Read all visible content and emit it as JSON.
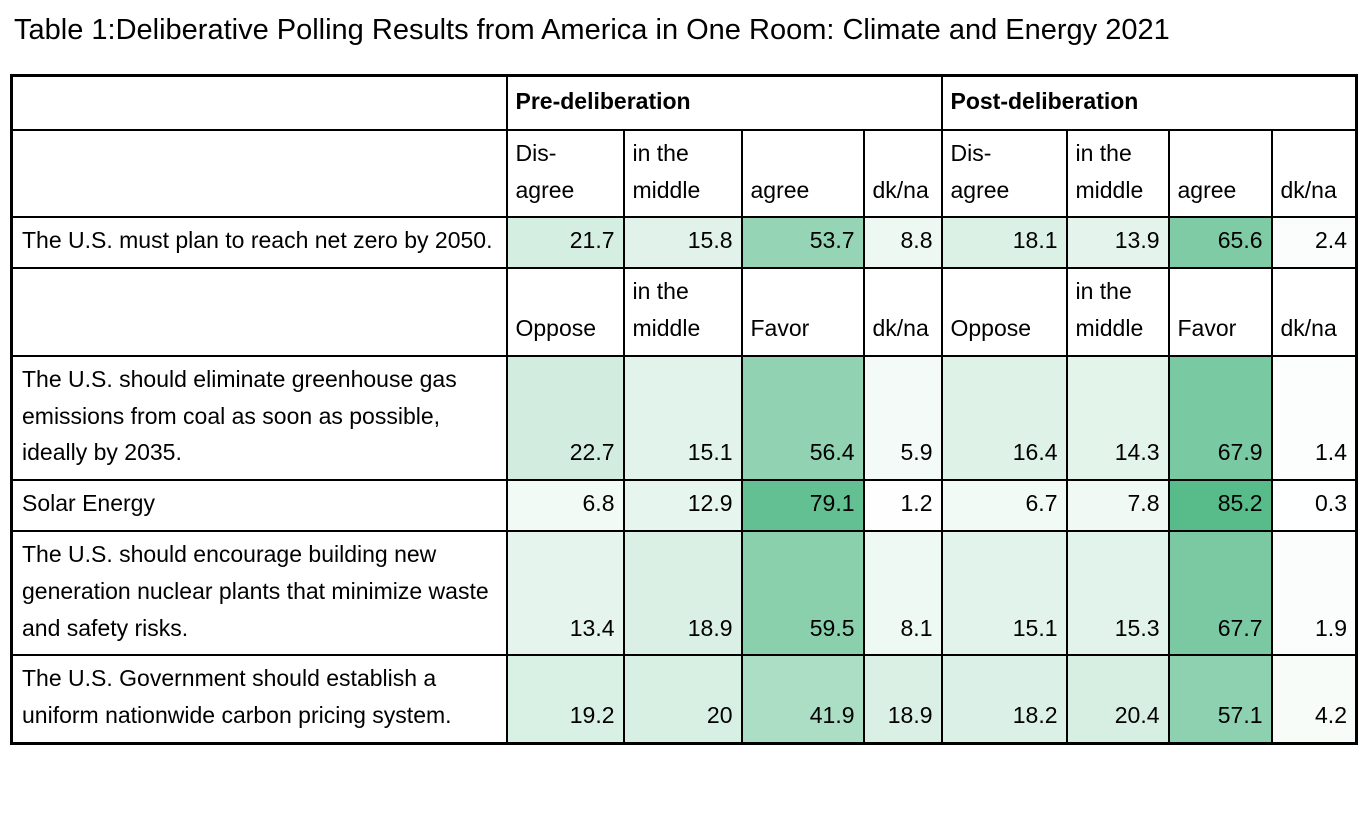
{
  "title": "Table 1:Deliberative Polling Results from America in One Room: Climate and Energy 2021",
  "chart_data": {
    "type": "table",
    "title": "Table 1:Deliberative Polling Results from America in One Room: Climate and Energy 2021",
    "group_headers": [
      "Pre-deliberation",
      "Post-deliberation"
    ],
    "heatmap_scale": {
      "min_value": 0,
      "max_value": 85.2,
      "min_color": "#ffffff",
      "max_color": "#57bb8a",
      "note": "cell background shades from white (low) to green (high percentage)"
    },
    "sections": [
      {
        "column_headers": [
          "Dis-\nagree",
          "in the\nmiddle",
          "agree",
          "dk/na"
        ],
        "rows": [
          {
            "label": "The U.S. must plan to reach net zero by 2050.",
            "pre": [
              21.7,
              15.8,
              53.7,
              8.8
            ],
            "post": [
              18.1,
              13.9,
              65.6,
              2.4
            ]
          }
        ]
      },
      {
        "column_headers": [
          "Oppose",
          "in the\nmiddle",
          "Favor",
          "dk/na"
        ],
        "rows": [
          {
            "label": "The U.S. should eliminate greenhouse gas emissions from coal as soon as possible, ideally by 2035.",
            "pre": [
              22.7,
              15.1,
              56.4,
              5.9
            ],
            "post": [
              16.4,
              14.3,
              67.9,
              1.4
            ]
          },
          {
            "label": "Solar Energy",
            "pre": [
              6.8,
              12.9,
              79.1,
              1.2
            ],
            "post": [
              6.7,
              7.8,
              85.2,
              0.3
            ]
          },
          {
            "label": "The U.S. should encourage building new generation nuclear plants that minimize waste and safety risks.",
            "pre": [
              13.4,
              18.9,
              59.5,
              8.1
            ],
            "post": [
              15.1,
              15.3,
              67.7,
              1.9
            ]
          },
          {
            "label": "The U.S. Government should establish a uniform nationwide carbon pricing system.",
            "pre": [
              19.2,
              20,
              41.9,
              18.9
            ],
            "post": [
              18.2,
              20.4,
              57.1,
              4.2
            ]
          }
        ]
      }
    ]
  }
}
